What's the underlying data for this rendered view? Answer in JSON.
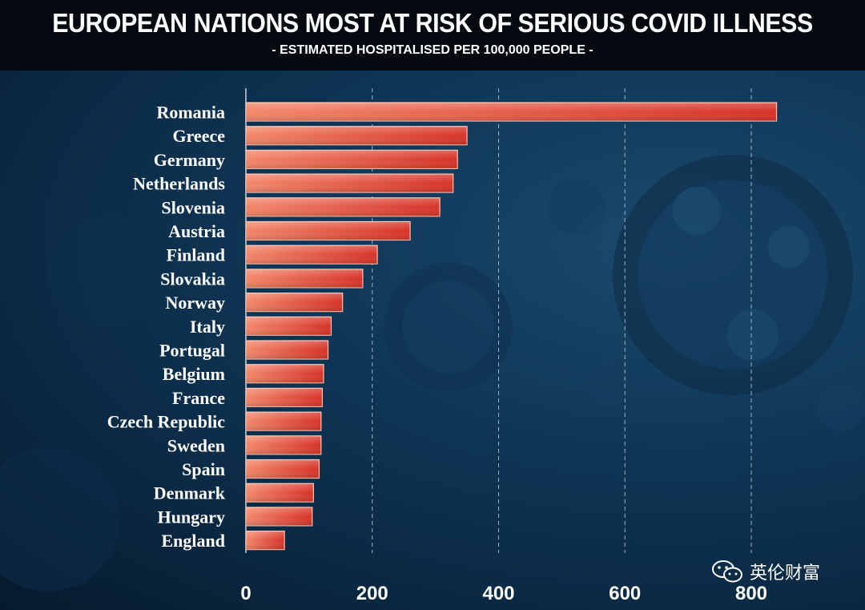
{
  "header": {
    "title": "EUROPEAN NATIONS MOST AT RISK OF SERIOUS COVID ILLNESS",
    "subtitle": "- ESTIMATED HOSPITALISED PER 100,000 PEOPLE -"
  },
  "watermark": {
    "text": "英伦财富",
    "icon": "wechat-icon"
  },
  "colors": {
    "bar": "#e8473a",
    "bar_light": "#f08a6c",
    "bar_dark": "#c8261f",
    "grid": "#8aa0b4"
  },
  "chart_data": {
    "type": "bar",
    "orientation": "horizontal",
    "title": "EUROPEAN NATIONS MOST AT RISK OF SERIOUS COVID ILLNESS",
    "subtitle": "- ESTIMATED HOSPITALISED PER 100,000 PEOPLE -",
    "categories": [
      "Romania",
      "Greece",
      "Germany",
      "Netherlands",
      "Slovenia",
      "Austria",
      "Finland",
      "Slovakia",
      "Norway",
      "Italy",
      "Portugal",
      "Belgium",
      "France",
      "Czech Republic",
      "Sweden",
      "Spain",
      "Denmark",
      "Hungary",
      "England"
    ],
    "values": [
      840,
      350,
      335,
      328,
      307,
      260,
      208,
      185,
      153,
      135,
      130,
      123,
      121,
      119,
      119,
      116,
      107,
      105,
      61
    ],
    "xlim": [
      0,
      800
    ],
    "xticks": [
      "0",
      "200",
      "400",
      "600",
      "800"
    ],
    "grid": "vertical dashed",
    "xlabel": "",
    "ylabel": ""
  }
}
